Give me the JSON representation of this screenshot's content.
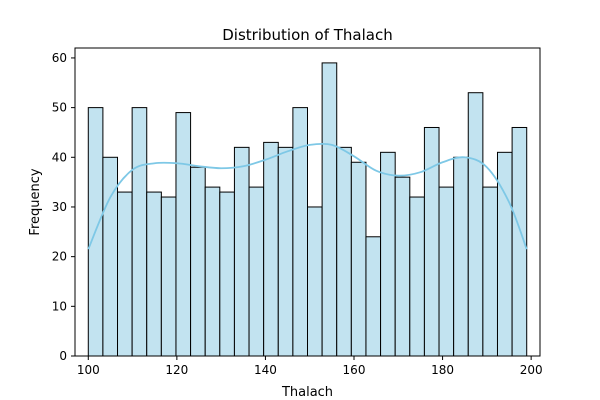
{
  "chart_data": {
    "type": "bar",
    "title": "Distribution of Thalach",
    "xlabel": "Thalach",
    "ylabel": "Frequency",
    "xlim": [
      97,
      202
    ],
    "ylim": [
      0,
      62
    ],
    "bin_start": 100,
    "bin_end": 199,
    "x_ticks": [
      100,
      120,
      140,
      160,
      180,
      200
    ],
    "y_ticks": [
      0,
      10,
      20,
      30,
      40,
      50,
      60
    ],
    "values": [
      50,
      40,
      33,
      50,
      33,
      32,
      49,
      38,
      34,
      33,
      42,
      34,
      43,
      42,
      50,
      30,
      59,
      42,
      39,
      24,
      41,
      36,
      32,
      46,
      34,
      40,
      53,
      34,
      41,
      46
    ],
    "kde": {
      "x": [
        100,
        105,
        110,
        115,
        120,
        125,
        130,
        135,
        140,
        145,
        150,
        155,
        160,
        165,
        170,
        175,
        180,
        185,
        190,
        195,
        199
      ],
      "y": [
        21.5,
        32,
        37.5,
        38.8,
        38.8,
        38.2,
        37.8,
        38.2,
        39.5,
        41.2,
        42.5,
        42.5,
        40.2,
        37.3,
        36.3,
        37,
        39,
        40,
        38,
        31,
        21.5
      ]
    },
    "bar_color": "#c2e3f0",
    "bar_edge_color": "#000000",
    "kde_color": "#7ec8e6",
    "grid": false,
    "legend": "none"
  }
}
